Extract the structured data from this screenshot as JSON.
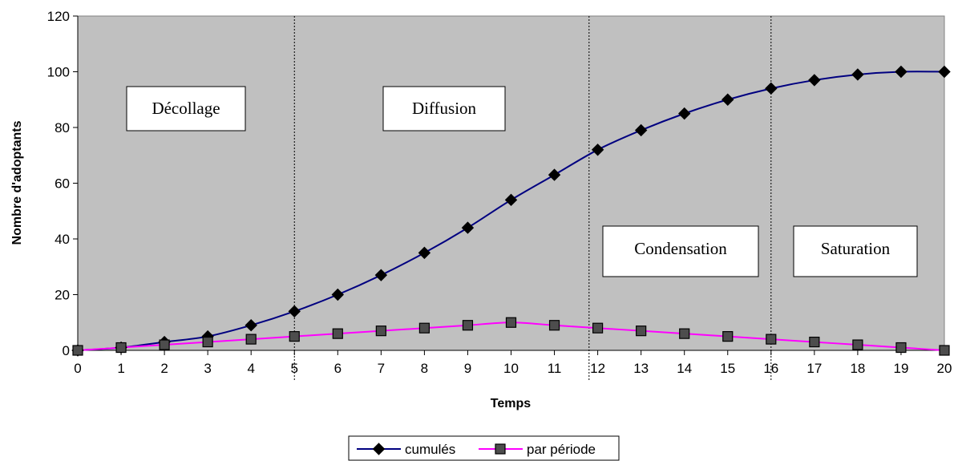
{
  "chart_data": {
    "type": "line",
    "xlabel": "Temps",
    "ylabel": "Nombre d'adoptants",
    "xlim": [
      0,
      20
    ],
    "ylim": [
      0,
      120
    ],
    "x_ticks": [
      "0",
      "1",
      "2",
      "3",
      "4",
      "5",
      "6",
      "7",
      "8",
      "9",
      "10",
      "11",
      "12",
      "13",
      "14",
      "15",
      "16",
      "17",
      "18",
      "19",
      "20"
    ],
    "y_ticks": [
      "0",
      "20",
      "40",
      "60",
      "80",
      "100",
      "120"
    ],
    "x": [
      0,
      1,
      2,
      3,
      4,
      5,
      6,
      7,
      8,
      9,
      10,
      11,
      12,
      13,
      14,
      15,
      16,
      17,
      18,
      19,
      20
    ],
    "series": [
      {
        "name": "cumulés",
        "color": "#000080",
        "marker": "diamond",
        "values": [
          0,
          1,
          3,
          5,
          9,
          14,
          20,
          27,
          35,
          44,
          54,
          63,
          72,
          79,
          85,
          90,
          94,
          97,
          99,
          100,
          100
        ]
      },
      {
        "name": "par période",
        "color": "#ff00ff",
        "marker": "square",
        "values": [
          0,
          1,
          2,
          3,
          4,
          5,
          6,
          7,
          8,
          9,
          10,
          9,
          8,
          7,
          6,
          5,
          4,
          3,
          2,
          1,
          0
        ]
      }
    ],
    "phase_dividers": [
      5,
      11.8,
      16
    ],
    "phases": [
      {
        "label": "Décollage"
      },
      {
        "label": "Diffusion"
      },
      {
        "label": "Condensation"
      },
      {
        "label": "Saturation"
      }
    ],
    "plot_background": "#c0c0c0",
    "grid": false,
    "legend_position": "bottom"
  }
}
